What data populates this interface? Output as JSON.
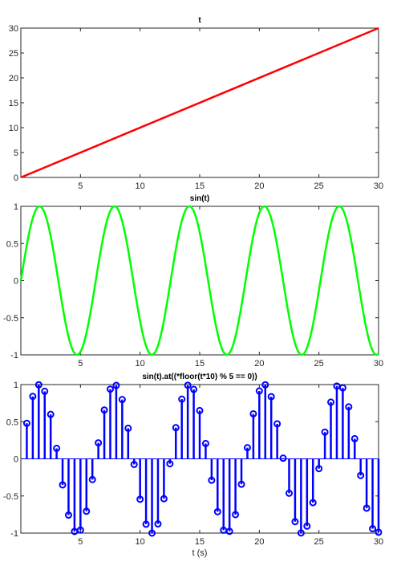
{
  "chart_data": [
    {
      "type": "line",
      "title": "t",
      "xlim": [
        0,
        30
      ],
      "ylim": [
        0,
        30
      ],
      "x_ticks": [
        5,
        10,
        15,
        20,
        25,
        30
      ],
      "y_ticks": [
        0,
        5,
        10,
        15,
        20,
        25,
        30
      ],
      "series": [
        {
          "color": "#ff0000",
          "x": [
            0,
            30
          ],
          "y": [
            0,
            30
          ]
        }
      ]
    },
    {
      "type": "line",
      "title": "sin(t)",
      "xlim": [
        0,
        30
      ],
      "ylim": [
        -1,
        1
      ],
      "x_ticks": [
        5,
        10,
        15,
        20,
        25,
        30
      ],
      "y_ticks": [
        -1,
        -0.5,
        0,
        0.5,
        1
      ],
      "y_tick_labels": [
        "-1",
        "-0.5",
        "0",
        "0.5",
        "1"
      ],
      "series": [
        {
          "color": "#00ff00",
          "function": "sin(t)",
          "x_range": [
            0,
            30
          ]
        }
      ]
    },
    {
      "type": "scatter",
      "title": "sin(t).at((*floor(t*10) % 5 == 0))",
      "xlabel": "t (s)",
      "xlim": [
        0,
        30
      ],
      "ylim": [
        -1,
        1
      ],
      "x_ticks": [
        5,
        10,
        15,
        20,
        25,
        30
      ],
      "y_ticks": [
        -1,
        -0.5,
        0,
        0.5,
        1
      ],
      "y_tick_labels": [
        "-1",
        "-0.5",
        "0",
        "0.5",
        "1"
      ],
      "series": [
        {
          "color": "#0000ff",
          "x": [
            0.5,
            1.0,
            1.5,
            2.0,
            2.5,
            3.0,
            3.5,
            4.0,
            4.5,
            5.0,
            5.5,
            6.0,
            6.5,
            7.0,
            7.5,
            8.0,
            8.5,
            9.0,
            9.5,
            10.0,
            10.5,
            11.0,
            11.5,
            12.0,
            12.5,
            13.0,
            13.5,
            14.0,
            14.5,
            15.0,
            15.5,
            16.0,
            16.5,
            17.0,
            17.5,
            18.0,
            18.5,
            19.0,
            19.5,
            20.0,
            20.5,
            21.0,
            21.5,
            22.0,
            22.5,
            23.0,
            23.5,
            24.0,
            24.5,
            25.0,
            25.5,
            26.0,
            26.5,
            27.0,
            27.5,
            28.0,
            28.5,
            29.0,
            29.5,
            30.0
          ],
          "y": [
            0.479,
            0.841,
            0.997,
            0.909,
            0.598,
            0.141,
            -0.351,
            -0.757,
            -0.978,
            -0.959,
            -0.706,
            -0.279,
            0.215,
            0.657,
            0.938,
            0.989,
            0.798,
            0.412,
            -0.075,
            -0.544,
            -0.88,
            -1.0,
            -0.876,
            -0.537,
            -0.066,
            0.42,
            0.804,
            0.991,
            0.935,
            0.65,
            0.206,
            -0.288,
            -0.712,
            -0.961,
            -0.976,
            -0.751,
            -0.342,
            0.15,
            0.606,
            0.913,
            0.997,
            0.837,
            0.471,
            0.009,
            -0.463,
            -0.846,
            -0.998,
            -0.906,
            -0.59,
            -0.132,
            0.36,
            0.763,
            0.98,
            0.956,
            0.7,
            0.271,
            -0.224,
            -0.664,
            -0.941,
            -0.988
          ]
        }
      ]
    }
  ]
}
